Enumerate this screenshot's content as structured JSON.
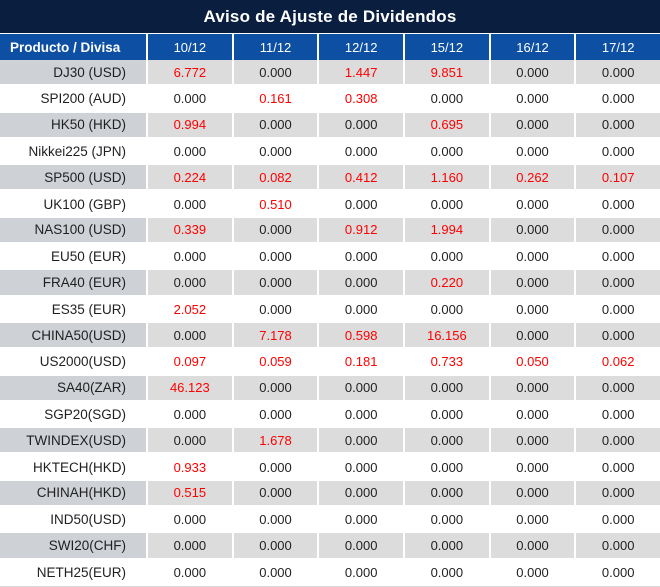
{
  "colors": {
    "title_bar_navy": "#0a1e3f",
    "header_blue": "#0d4fa3",
    "stripe_label_gray": "#ced1d6",
    "stripe_value_gray": "#dcdcdc",
    "plain_row_white": "#ffffff",
    "nonzero_red": "#ff0000",
    "zero_text_dark": "#1f1f1f"
  },
  "chart_data": {
    "type": "table",
    "title": "Aviso de Ajuste de Dividendos",
    "product_header": "Producto / Divisa",
    "date_columns": [
      "10/12",
      "11/12",
      "12/12",
      "15/12",
      "16/12",
      "17/12"
    ],
    "highlight_rule": "non-zero dividend adjustments rendered in red",
    "rows": [
      {
        "product": "DJ30 (USD)",
        "values": [
          "6.772",
          "0.000",
          "1.447",
          "9.851",
          "0.000",
          "0.000"
        ]
      },
      {
        "product": "SPI200 (AUD)",
        "values": [
          "0.000",
          "0.161",
          "0.308",
          "0.000",
          "0.000",
          "0.000"
        ]
      },
      {
        "product": "HK50 (HKD)",
        "values": [
          "0.994",
          "0.000",
          "0.000",
          "0.695",
          "0.000",
          "0.000"
        ]
      },
      {
        "product": "Nikkei225 (JPN)",
        "values": [
          "0.000",
          "0.000",
          "0.000",
          "0.000",
          "0.000",
          "0.000"
        ]
      },
      {
        "product": "SP500 (USD)",
        "values": [
          "0.224",
          "0.082",
          "0.412",
          "1.160",
          "0.262",
          "0.107"
        ]
      },
      {
        "product": "UK100 (GBP)",
        "values": [
          "0.000",
          "0.510",
          "0.000",
          "0.000",
          "0.000",
          "0.000"
        ]
      },
      {
        "product": "NAS100 (USD)",
        "values": [
          "0.339",
          "0.000",
          "0.912",
          "1.994",
          "0.000",
          "0.000"
        ]
      },
      {
        "product": "EU50 (EUR)",
        "values": [
          "0.000",
          "0.000",
          "0.000",
          "0.000",
          "0.000",
          "0.000"
        ]
      },
      {
        "product": "FRA40 (EUR)",
        "values": [
          "0.000",
          "0.000",
          "0.000",
          "0.220",
          "0.000",
          "0.000"
        ]
      },
      {
        "product": "ES35 (EUR)",
        "values": [
          "2.052",
          "0.000",
          "0.000",
          "0.000",
          "0.000",
          "0.000"
        ]
      },
      {
        "product": "CHINA50(USD)",
        "values": [
          "0.000",
          "7.178",
          "0.598",
          "16.156",
          "0.000",
          "0.000"
        ]
      },
      {
        "product": "US2000(USD)",
        "values": [
          "0.097",
          "0.059",
          "0.181",
          "0.733",
          "0.050",
          "0.062"
        ]
      },
      {
        "product": "SA40(ZAR)",
        "values": [
          "46.123",
          "0.000",
          "0.000",
          "0.000",
          "0.000",
          "0.000"
        ]
      },
      {
        "product": "SGP20(SGD)",
        "values": [
          "0.000",
          "0.000",
          "0.000",
          "0.000",
          "0.000",
          "0.000"
        ]
      },
      {
        "product": "TWINDEX(USD)",
        "values": [
          "0.000",
          "1.678",
          "0.000",
          "0.000",
          "0.000",
          "0.000"
        ]
      },
      {
        "product": "HKTECH(HKD)",
        "values": [
          "0.933",
          "0.000",
          "0.000",
          "0.000",
          "0.000",
          "0.000"
        ]
      },
      {
        "product": "CHINAH(HKD)",
        "values": [
          "0.515",
          "0.000",
          "0.000",
          "0.000",
          "0.000",
          "0.000"
        ]
      },
      {
        "product": "IND50(USD)",
        "values": [
          "0.000",
          "0.000",
          "0.000",
          "0.000",
          "0.000",
          "0.000"
        ]
      },
      {
        "product": "SWI20(CHF)",
        "values": [
          "0.000",
          "0.000",
          "0.000",
          "0.000",
          "0.000",
          "0.000"
        ]
      },
      {
        "product": "NETH25(EUR)",
        "values": [
          "0.000",
          "0.000",
          "0.000",
          "0.000",
          "0.000",
          "0.000"
        ]
      }
    ]
  }
}
